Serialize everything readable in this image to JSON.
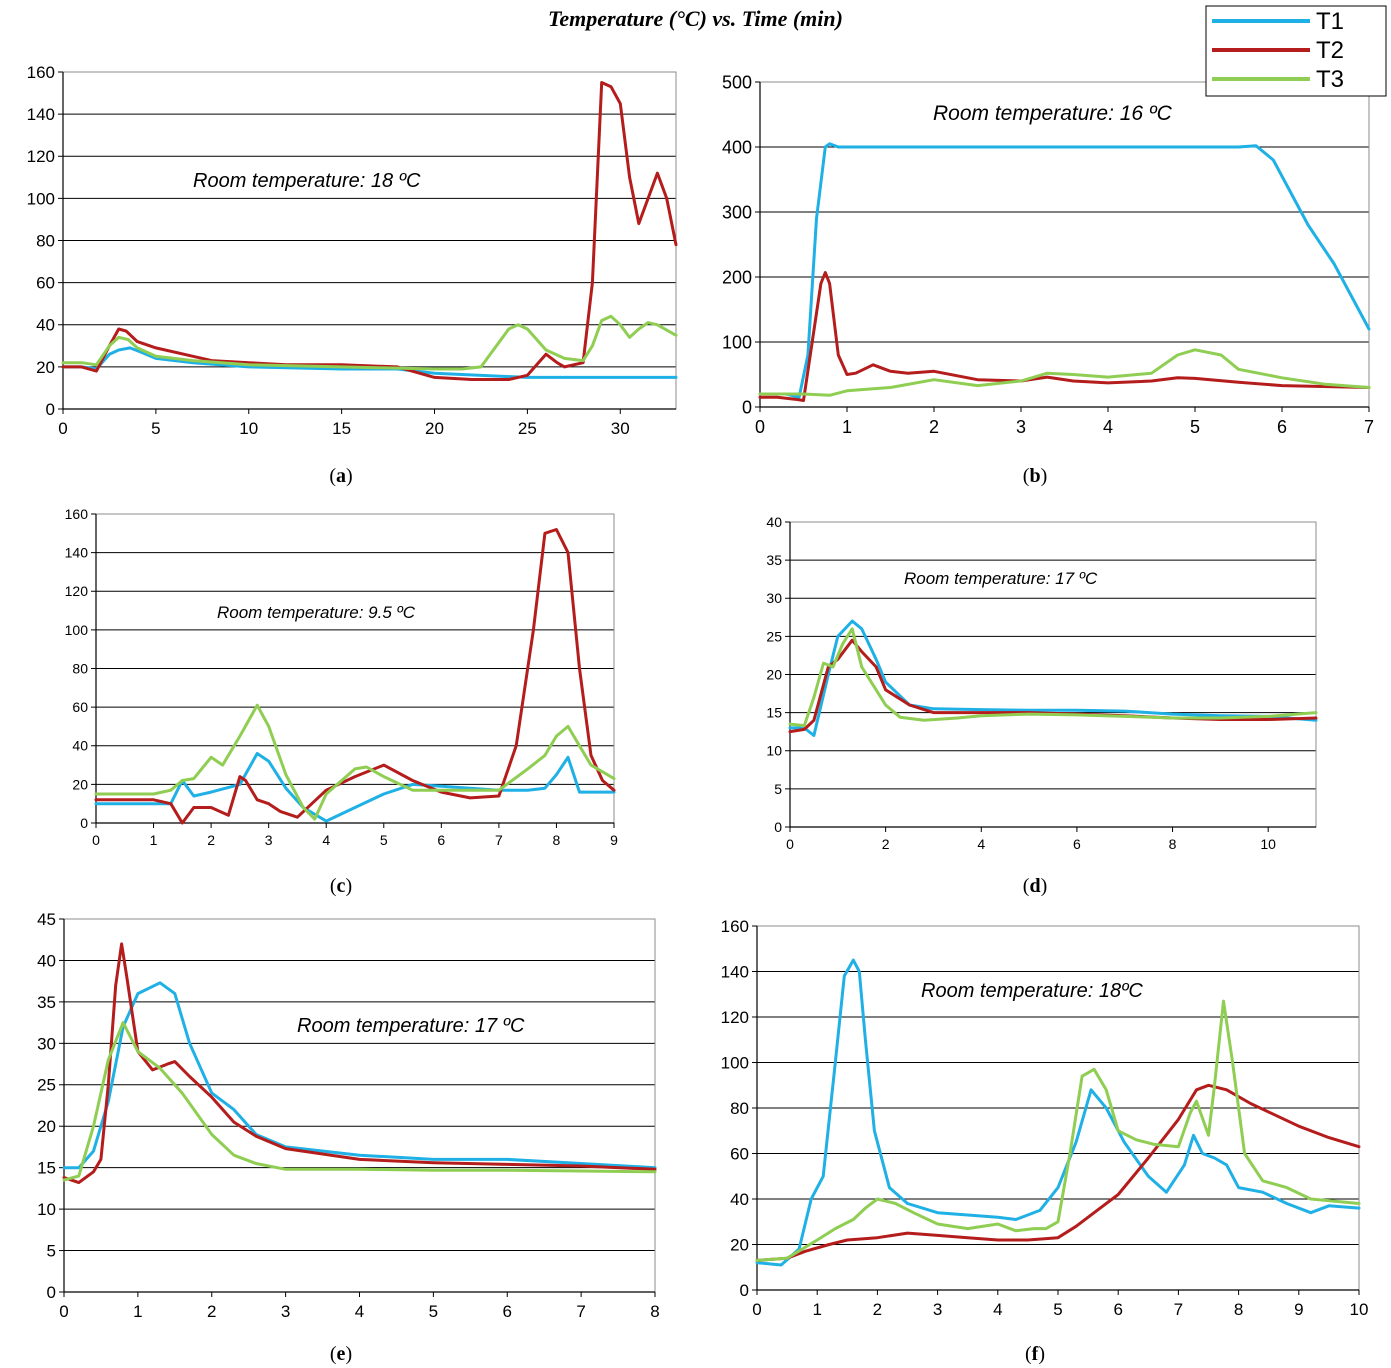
{
  "figure": {
    "title": "Temperature (°C) vs. Time (min)"
  },
  "legend": {
    "entries": [
      {
        "name": "T1",
        "color": "#1fb0e6"
      },
      {
        "name": "T2",
        "color": "#b51c1c"
      },
      {
        "name": "T3",
        "color": "#8fce53"
      }
    ]
  },
  "chart_data": [
    {
      "id": "a",
      "type": "line",
      "caption": "(a)",
      "annotation": "Room temperature: 18 ºC",
      "xlim": [
        0,
        33
      ],
      "ylim": [
        0,
        160
      ],
      "xticks": [
        0,
        5,
        10,
        15,
        20,
        25,
        30
      ],
      "yticks": [
        0,
        20,
        40,
        60,
        80,
        100,
        120,
        140,
        160
      ],
      "grid": true,
      "series": [
        {
          "name": "T1",
          "x": [
            0,
            1,
            1.8,
            2.5,
            3,
            3.6,
            4.2,
            5,
            7,
            10,
            15,
            18,
            20,
            25,
            30,
            33
          ],
          "y": [
            20,
            20,
            19,
            26,
            28,
            29,
            27,
            24,
            22,
            20,
            19,
            19,
            17,
            15,
            15,
            15
          ]
        },
        {
          "name": "T2",
          "x": [
            0,
            1,
            1.8,
            2.5,
            3,
            3.4,
            4,
            5,
            7,
            8,
            10,
            12,
            15,
            18,
            20,
            22,
            24,
            25,
            26,
            26.6,
            27,
            28,
            28.5,
            29,
            29.5,
            30,
            30.5,
            31,
            31.5,
            32,
            32.5,
            33
          ],
          "y": [
            20,
            20,
            18,
            30,
            38,
            37,
            32,
            29,
            25,
            23,
            22,
            21,
            21,
            20,
            15,
            14,
            14,
            16,
            26,
            22,
            20,
            22,
            60,
            155,
            153,
            145,
            110,
            88,
            100,
            112,
            100,
            78
          ]
        },
        {
          "name": "T3",
          "x": [
            0,
            1,
            1.8,
            2.5,
            3,
            3.5,
            4,
            5,
            7,
            10,
            15,
            20,
            21.5,
            22.5,
            23.5,
            24,
            24.5,
            25,
            26,
            27,
            28,
            28.5,
            29,
            29.5,
            30,
            30.5,
            31,
            31.5,
            32,
            33
          ],
          "y": [
            22,
            22,
            21,
            30,
            34,
            33,
            29,
            25,
            23,
            21,
            20,
            19,
            19,
            20,
            32,
            38,
            40,
            38,
            28,
            24,
            23,
            30,
            42,
            44,
            40,
            34,
            38,
            41,
            40,
            35
          ]
        }
      ]
    },
    {
      "id": "b",
      "type": "line",
      "caption": "(b)",
      "annotation": "Room temperature: 16 ºC",
      "xlim": [
        0,
        7
      ],
      "ylim": [
        0,
        500
      ],
      "xticks": [
        0,
        1,
        2,
        3,
        4,
        5,
        6,
        7
      ],
      "yticks": [
        0,
        100,
        200,
        300,
        400,
        500
      ],
      "grid": true,
      "series": [
        {
          "name": "T1",
          "x": [
            0,
            0.3,
            0.45,
            0.55,
            0.65,
            0.75,
            0.8,
            0.9,
            1,
            2,
            3,
            4,
            5,
            5.5,
            5.7,
            5.9,
            6.1,
            6.3,
            6.6,
            7
          ],
          "y": [
            20,
            20,
            15,
            80,
            290,
            400,
            405,
            400,
            400,
            400,
            400,
            400,
            400,
            400,
            402,
            380,
            330,
            280,
            220,
            120
          ]
        },
        {
          "name": "T2",
          "x": [
            0,
            0.2,
            0.4,
            0.5,
            0.6,
            0.7,
            0.75,
            0.8,
            0.9,
            1,
            1.1,
            1.3,
            1.5,
            1.7,
            2,
            2.5,
            3,
            3.3,
            3.6,
            4,
            4.5,
            4.8,
            5,
            5.5,
            6,
            7
          ],
          "y": [
            15,
            15,
            12,
            10,
            100,
            190,
            207,
            190,
            80,
            50,
            52,
            65,
            55,
            52,
            55,
            42,
            40,
            46,
            40,
            37,
            40,
            45,
            44,
            38,
            33,
            30
          ]
        },
        {
          "name": "T3",
          "x": [
            0,
            0.5,
            0.8,
            1,
            1.5,
            2,
            2.5,
            3,
            3.3,
            3.6,
            4,
            4.5,
            4.8,
            5,
            5.3,
            5.5,
            6,
            6.5,
            7
          ],
          "y": [
            20,
            20,
            18,
            25,
            30,
            42,
            33,
            40,
            52,
            50,
            46,
            52,
            80,
            88,
            80,
            58,
            45,
            35,
            30
          ]
        }
      ]
    },
    {
      "id": "c",
      "type": "line",
      "caption": "(c)",
      "annotation": "Room temperature: 9.5 ºC",
      "xlim": [
        0,
        9
      ],
      "ylim": [
        0,
        160
      ],
      "xticks": [
        0,
        1,
        2,
        3,
        4,
        5,
        6,
        7,
        8,
        9
      ],
      "yticks": [
        0,
        20,
        40,
        60,
        80,
        100,
        120,
        140,
        160
      ],
      "grid": true,
      "series": [
        {
          "name": "T1",
          "x": [
            0,
            1,
            1.3,
            1.5,
            1.7,
            2,
            2.5,
            2.8,
            3,
            3.3,
            3.6,
            4,
            4.5,
            5,
            5.5,
            6,
            7,
            7.5,
            7.8,
            8,
            8.2,
            8.4,
            8.6,
            9
          ],
          "y": [
            10,
            10,
            10,
            22,
            14,
            16,
            20,
            36,
            32,
            18,
            8,
            1,
            8,
            15,
            20,
            19,
            17,
            17,
            18,
            25,
            34,
            16,
            16,
            16
          ]
        },
        {
          "name": "T2",
          "x": [
            0,
            1,
            1.3,
            1.5,
            1.7,
            2,
            2.3,
            2.5,
            2.6,
            2.8,
            3,
            3.2,
            3.5,
            4,
            4.5,
            5,
            5.5,
            6,
            6.5,
            7,
            7.3,
            7.6,
            7.8,
            8,
            8.2,
            8.4,
            8.6,
            8.8,
            9
          ],
          "y": [
            12,
            12,
            10,
            0,
            8,
            8,
            4,
            24,
            22,
            12,
            10,
            6,
            3,
            17,
            24,
            30,
            22,
            16,
            13,
            14,
            40,
            100,
            150,
            152,
            140,
            80,
            35,
            22,
            17
          ]
        },
        {
          "name": "T3",
          "x": [
            0,
            0.5,
            1,
            1.3,
            1.5,
            1.7,
            2,
            2.2,
            2.5,
            2.8,
            3,
            3.3,
            3.6,
            3.8,
            4,
            4.5,
            4.7,
            5,
            5.5,
            6,
            6.5,
            7,
            7.5,
            7.8,
            8,
            8.2,
            8.4,
            8.6,
            9
          ],
          "y": [
            15,
            15,
            15,
            17,
            22,
            23,
            34,
            30,
            45,
            61,
            50,
            25,
            8,
            2,
            15,
            28,
            29,
            24,
            17,
            17,
            17,
            17,
            28,
            35,
            45,
            50,
            40,
            30,
            23
          ]
        }
      ]
    },
    {
      "id": "d",
      "type": "line",
      "caption": "(d)",
      "annotation": "Room temperature: 17 ºC",
      "xlim": [
        0,
        11
      ],
      "ylim": [
        0,
        40
      ],
      "xticks": [
        0,
        2,
        4,
        6,
        8,
        10
      ],
      "yticks": [
        0,
        5,
        10,
        15,
        20,
        25,
        30,
        35,
        40
      ],
      "grid": true,
      "series": [
        {
          "name": "T1",
          "x": [
            0,
            0.3,
            0.5,
            0.8,
            1,
            1.3,
            1.5,
            1.8,
            2,
            2.5,
            3,
            4,
            5,
            6,
            7,
            8,
            9,
            10,
            11
          ],
          "y": [
            13,
            13,
            12,
            20,
            25,
            27,
            26,
            22,
            19,
            16,
            15.5,
            15.4,
            15.3,
            15.3,
            15.2,
            14.8,
            14.6,
            14.5,
            14
          ]
        },
        {
          "name": "T2",
          "x": [
            0,
            0.3,
            0.5,
            0.8,
            1,
            1.3,
            1.5,
            1.8,
            2,
            2.5,
            3,
            4,
            5,
            6,
            7,
            8,
            9,
            10,
            11
          ],
          "y": [
            12.5,
            12.8,
            14,
            21,
            22,
            24.5,
            23,
            21,
            18,
            16,
            15,
            15,
            15,
            14.8,
            14.6,
            14.3,
            14.1,
            14.1,
            14.3
          ]
        },
        {
          "name": "T3",
          "x": [
            0,
            0.3,
            0.5,
            0.7,
            0.9,
            1.1,
            1.3,
            1.5,
            1.8,
            2,
            2.3,
            2.8,
            3.5,
            4,
            5,
            6,
            7,
            8,
            9,
            10,
            11
          ],
          "y": [
            13.5,
            13.3,
            17,
            21.5,
            21,
            24,
            26,
            21,
            18,
            16,
            14.4,
            14,
            14.3,
            14.6,
            14.8,
            14.7,
            14.5,
            14.3,
            14.3,
            14.5,
            15
          ]
        }
      ]
    },
    {
      "id": "e",
      "type": "line",
      "caption": "(e)",
      "annotation": "Room temperature: 17 ºC",
      "xlim": [
        0,
        8
      ],
      "ylim": [
        0,
        45
      ],
      "xticks": [
        0,
        1,
        2,
        3,
        4,
        5,
        6,
        7,
        8
      ],
      "yticks": [
        0,
        5,
        10,
        15,
        20,
        25,
        30,
        35,
        40,
        45
      ],
      "grid": true,
      "series": [
        {
          "name": "T1",
          "x": [
            0,
            0.2,
            0.4,
            0.6,
            0.8,
            1,
            1.3,
            1.5,
            1.7,
            2,
            2.3,
            2.6,
            3,
            4,
            5,
            6,
            7,
            8
          ],
          "y": [
            15,
            15,
            17,
            23,
            32,
            36,
            37.3,
            36,
            30,
            24,
            22,
            19,
            17.5,
            16.5,
            16,
            16,
            15.5,
            15
          ]
        },
        {
          "name": "T2",
          "x": [
            0,
            0.2,
            0.4,
            0.5,
            0.6,
            0.7,
            0.78,
            0.85,
            1,
            1.2,
            1.4,
            1.5,
            1.7,
            2,
            2.3,
            2.6,
            3,
            4,
            5,
            6,
            7,
            8
          ],
          "y": [
            13.8,
            13.2,
            14.5,
            16,
            25,
            37,
            42,
            38,
            29,
            26.8,
            27.5,
            27.8,
            26,
            23.5,
            20.5,
            18.8,
            17.3,
            16,
            15.6,
            15.4,
            15.2,
            14.8
          ]
        },
        {
          "name": "T3",
          "x": [
            0,
            0.2,
            0.4,
            0.6,
            0.8,
            1,
            1.3,
            1.6,
            2,
            2.3,
            2.6,
            3,
            4,
            5,
            6,
            7,
            8
          ],
          "y": [
            13.5,
            14,
            20,
            28,
            32.5,
            29,
            27,
            24,
            19,
            16.5,
            15.5,
            14.8,
            14.8,
            14.7,
            14.7,
            14.6,
            14.5
          ]
        }
      ]
    },
    {
      "id": "f",
      "type": "line",
      "caption": "(f)",
      "annotation": "Room temperature: 18ºC",
      "xlim": [
        0,
        10
      ],
      "ylim": [
        0,
        160
      ],
      "xticks": [
        0,
        1,
        2,
        3,
        4,
        5,
        6,
        7,
        8,
        9,
        10
      ],
      "yticks": [
        0,
        20,
        40,
        60,
        80,
        100,
        120,
        140,
        160
      ],
      "grid": true,
      "series": [
        {
          "name": "T1",
          "x": [
            0,
            0.4,
            0.7,
            0.9,
            1.1,
            1.3,
            1.45,
            1.6,
            1.7,
            1.8,
            1.95,
            2.2,
            2.5,
            3,
            4,
            4.3,
            4.7,
            5,
            5.3,
            5.55,
            5.8,
            6.1,
            6.5,
            6.8,
            7.1,
            7.25,
            7.4,
            7.6,
            7.8,
            8,
            8.4,
            8.8,
            9.2,
            9.5,
            10
          ],
          "y": [
            12,
            11,
            18,
            40,
            50,
            100,
            138,
            145,
            140,
            110,
            70,
            45,
            38,
            34,
            32,
            31,
            35,
            45,
            65,
            88,
            80,
            65,
            50,
            43,
            55,
            68,
            60,
            58,
            55,
            45,
            43,
            38,
            34,
            37,
            36
          ]
        },
        {
          "name": "T2",
          "x": [
            0,
            0.5,
            0.8,
            1.2,
            1.5,
            2,
            2.5,
            3,
            3.5,
            4,
            4.5,
            5,
            5.3,
            5.6,
            6,
            6.5,
            7,
            7.3,
            7.5,
            7.8,
            8.2,
            9,
            9.5,
            10
          ],
          "y": [
            13,
            14,
            17,
            20,
            22,
            23,
            25,
            24,
            23,
            22,
            22,
            23,
            28,
            34,
            42,
            58,
            75,
            88,
            90,
            88,
            82,
            72,
            67,
            63
          ]
        },
        {
          "name": "T3",
          "x": [
            0,
            0.5,
            1,
            1.3,
            1.6,
            1.8,
            2,
            2.3,
            2.6,
            3,
            3.5,
            4,
            4.3,
            4.6,
            4.8,
            5,
            5.2,
            5.4,
            5.6,
            5.8,
            6,
            6.3,
            6.6,
            7,
            7.2,
            7.3,
            7.5,
            7.6,
            7.75,
            7.9,
            8.1,
            8.4,
            8.8,
            9.2,
            10
          ],
          "y": [
            13,
            14,
            22,
            27,
            31,
            36,
            40,
            38,
            34,
            29,
            27,
            29,
            26,
            27,
            27,
            30,
            60,
            94,
            97,
            88,
            70,
            66,
            64,
            63,
            78,
            83,
            68,
            90,
            127,
            100,
            60,
            48,
            45,
            40,
            38
          ]
        }
      ]
    }
  ]
}
